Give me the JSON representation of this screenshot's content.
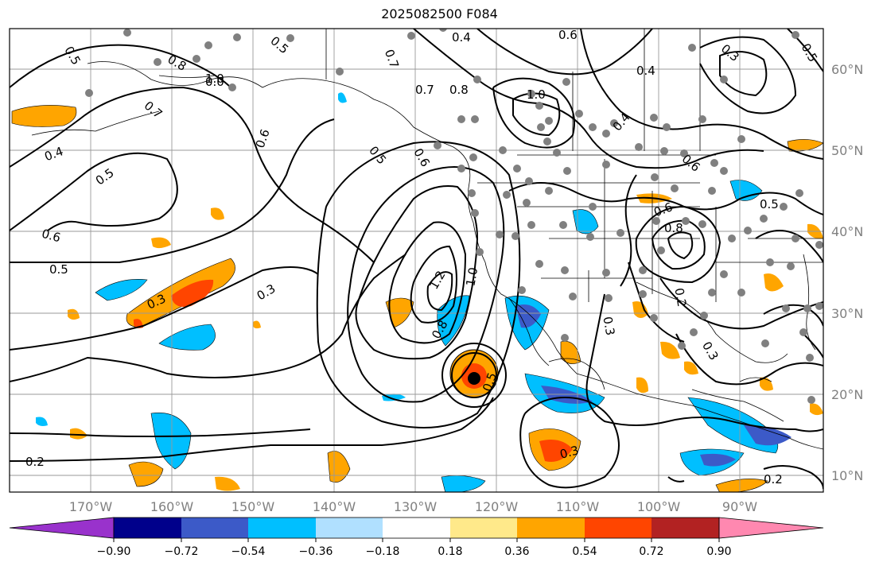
{
  "title": "2025082500 F084",
  "lat_labels": [
    "60°N",
    "50°N",
    "40°N",
    "30°N",
    "20°N",
    "10°N"
  ],
  "lon_labels": [
    "170°W",
    "160°W",
    "150°W",
    "140°W",
    "130°W",
    "120°W",
    "110°W",
    "100°W",
    "90°W"
  ],
  "contour_labels": [
    "0.5",
    "0.8",
    "1.0",
    "0.7",
    "0.4",
    "0.5",
    "0.6",
    "0.6",
    "0.3",
    "0.0",
    "0.7",
    "0.8",
    "1.0",
    "0.4",
    "0.4",
    "0.5",
    "0.6",
    "0.5",
    "0.6",
    "0.5",
    "0.7",
    "0.5",
    "0.6",
    "0.8",
    "0.6",
    "0.3",
    "0.5",
    "0.4",
    "0.3",
    "1.2",
    "1.0",
    "0.8",
    "0.5",
    "0.2",
    "0.3",
    "0.3",
    "0.2",
    "0.3",
    "0.2"
  ],
  "colorbar": {
    "ticks": [
      "−0.90",
      "−0.72",
      "−0.54",
      "−0.36",
      "−0.18",
      "0.18",
      "0.36",
      "0.54",
      "0.72",
      "0.90"
    ],
    "colors": [
      "#9932cc",
      "#00008b",
      "#3c5ac8",
      "#00bfff",
      "#b0e0ff",
      "#ffffff",
      "#ffe98a",
      "#ffa500",
      "#ff4500",
      "#b22222",
      "#ff88b0"
    ]
  },
  "fill_colors": {
    "orange": "#ffa500",
    "red": "#ff4500",
    "yellow": "#ffe98a",
    "lightblue": "#00bfff",
    "blue": "#3c5ac8",
    "paleblue": "#b0e0ff"
  }
}
